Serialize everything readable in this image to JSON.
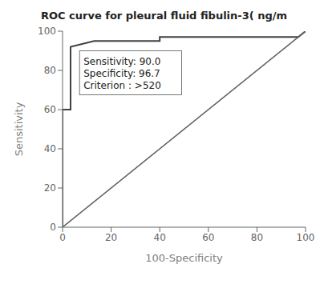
{
  "chart_data": {
    "type": "line",
    "title": "ROC curve for pleural fluid fibulin-3( ng/m",
    "xlabel": "100-Specificity",
    "ylabel": "Sensitivity",
    "series": [
      {
        "x": [
          0,
          0,
          0,
          3.3,
          3.3,
          13,
          40,
          40,
          97,
          100
        ],
        "values": [
          0,
          0,
          60,
          60,
          92,
          95,
          95,
          97,
          97,
          100
        ],
        "color": "#404040"
      },
      {
        "x": [
          0,
          100
        ],
        "values": [
          0,
          100
        ],
        "color": "#606060"
      }
    ],
    "xlim": [
      0,
      100
    ],
    "ylim": [
      0,
      100
    ],
    "xticks": [
      0,
      20,
      40,
      60,
      80,
      100
    ],
    "yticks": [
      0,
      20,
      40,
      60,
      80,
      100
    ],
    "annotations": [
      {
        "text": "Sensitivity: 90.0\nSpecificity: 96.7\nCriterion : >520",
        "x": 7,
        "y": 90
      }
    ],
    "grid": false,
    "background_color": "#ffffff"
  }
}
